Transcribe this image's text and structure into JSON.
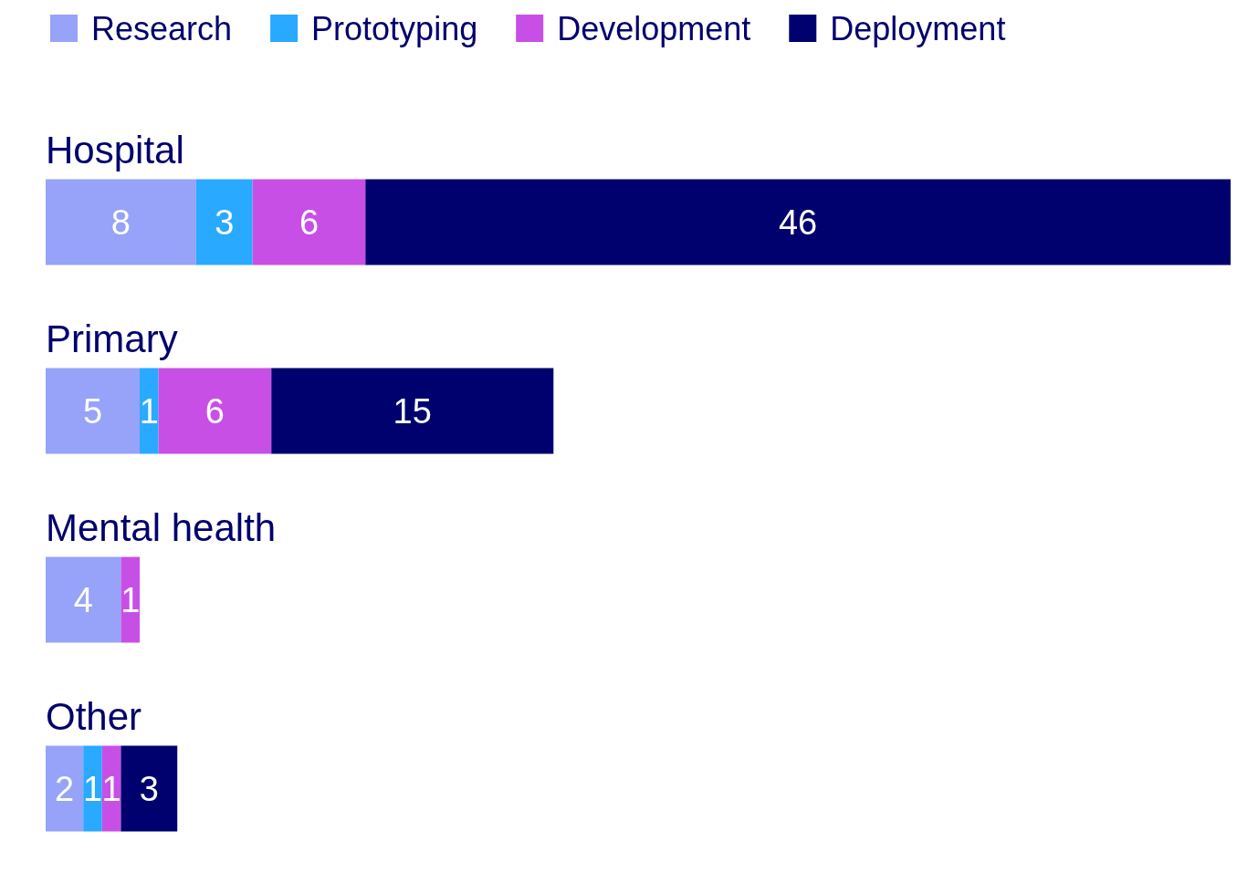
{
  "chart_data": {
    "type": "bar",
    "orientation": "horizontal",
    "stacked": true,
    "data_labels": true,
    "legend": "top left",
    "grid": false,
    "categories": [
      "Hospital",
      "Primary",
      "Mental health",
      "Other"
    ],
    "series": [
      {
        "name": "Research",
        "color": "#96a3f9",
        "values": [
          8,
          5,
          4,
          2
        ]
      },
      {
        "name": "Prototyping",
        "color": "#29a9ff",
        "values": [
          3,
          1,
          null,
          1
        ]
      },
      {
        "name": "Development",
        "color": "#c74fe6",
        "values": [
          6,
          6,
          1,
          1
        ]
      },
      {
        "name": "Deployment",
        "color": "#00006e",
        "values": [
          46,
          15,
          null,
          3
        ]
      }
    ]
  }
}
